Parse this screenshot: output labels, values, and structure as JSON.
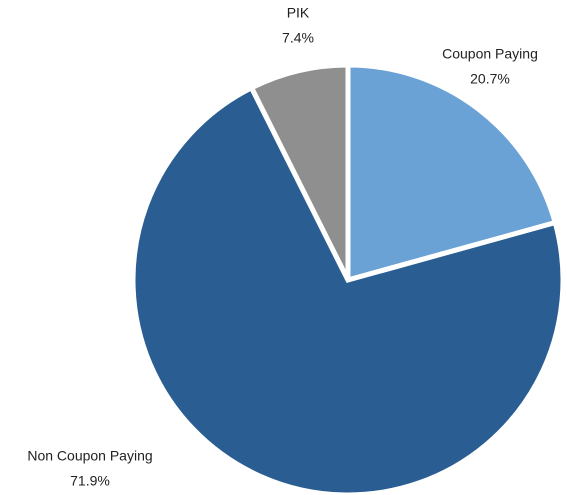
{
  "chart_data": {
    "type": "pie",
    "categories": [
      "Coupon Paying",
      "Non Coupon Paying",
      "PIK"
    ],
    "values": [
      20.7,
      71.9,
      7.4
    ],
    "value_labels": [
      "20.7%",
      "71.9%",
      "7.4%"
    ],
    "colors": [
      "#6aa2d6",
      "#2a5e92",
      "#8f8f8f"
    ]
  }
}
